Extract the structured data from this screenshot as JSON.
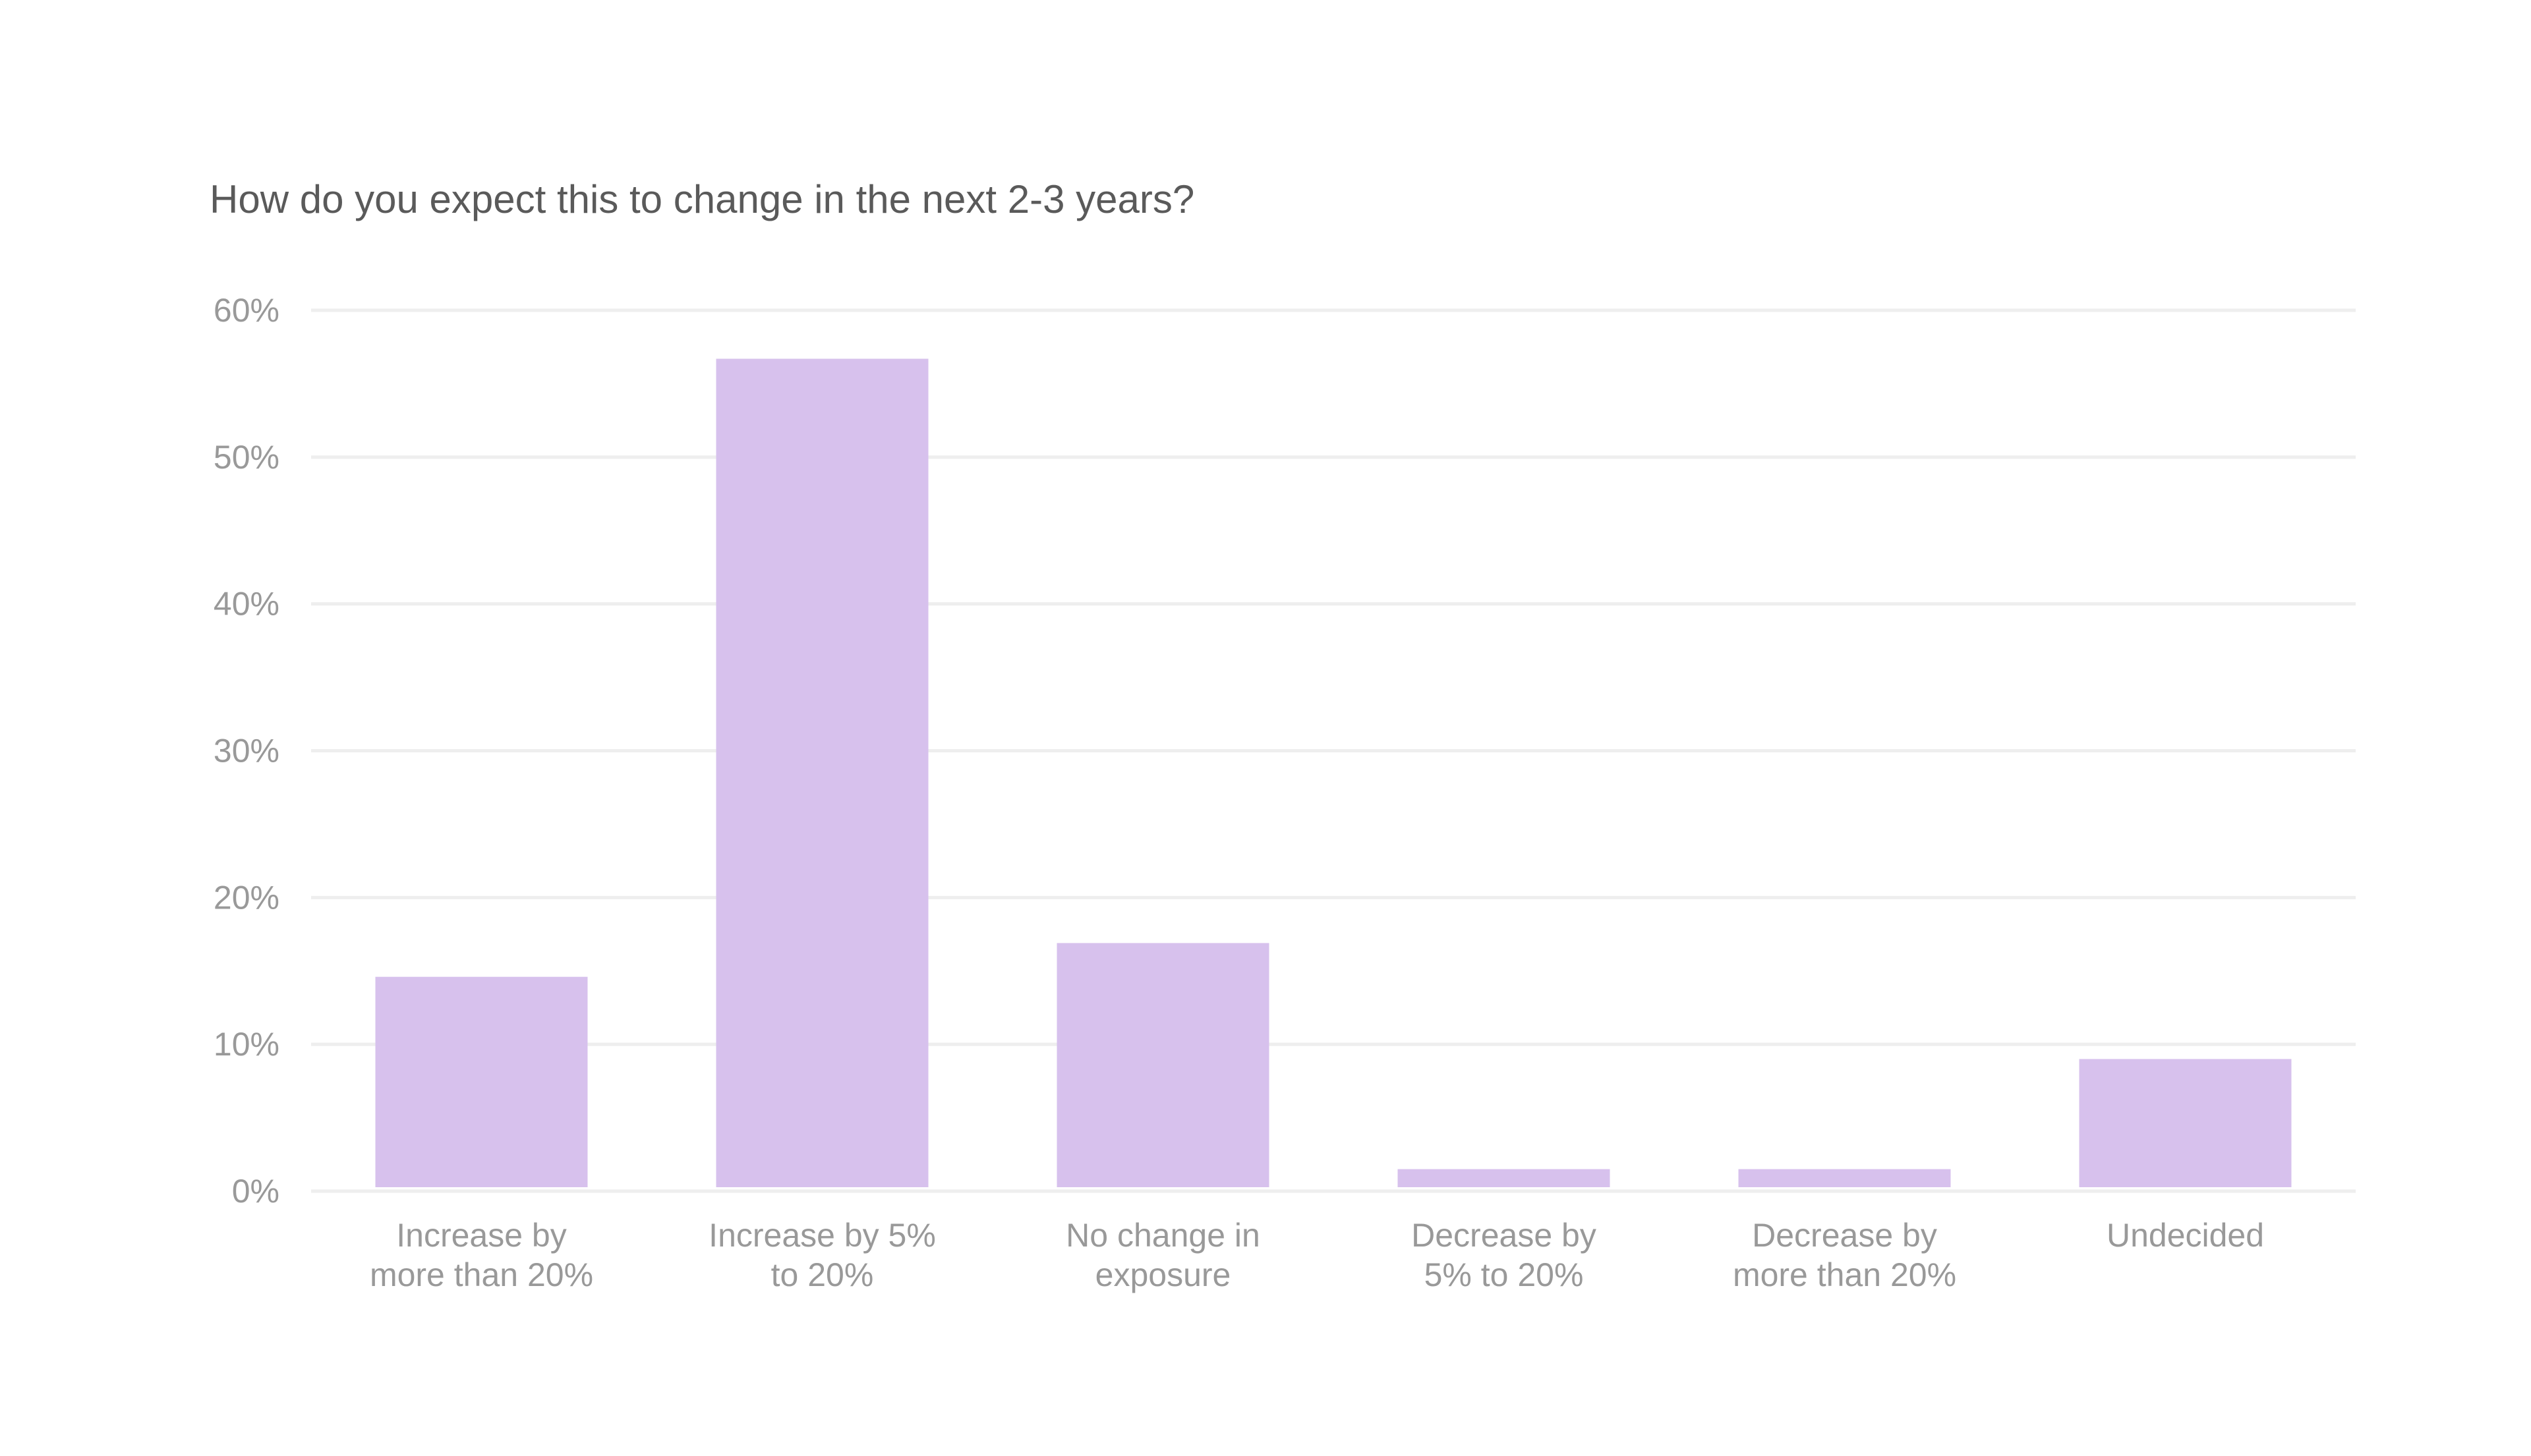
{
  "colors": {
    "bar": "#d7c1ed",
    "grid": "#eeeeee",
    "tick_text": "#999999",
    "title_text": "#5a5a5a",
    "background": "#ffffff"
  },
  "chart_data": {
    "type": "bar",
    "title": "How do you expect this to change in the next 2-3 years?",
    "xlabel": "",
    "ylabel": "",
    "ylim": [
      0,
      60
    ],
    "yticks": [
      0,
      10,
      20,
      30,
      40,
      50,
      60
    ],
    "ytick_labels": [
      "0%",
      "10%",
      "20%",
      "30%",
      "40%",
      "50%",
      "60%"
    ],
    "grid": true,
    "legend": "none",
    "categories": [
      [
        "Increase by",
        "more than 20%"
      ],
      [
        "Increase by 5%",
        "to 20%"
      ],
      [
        "No change in",
        "exposure"
      ],
      [
        "Decrease by",
        "5% to 20%"
      ],
      [
        "Decrease by",
        "more than 20%"
      ],
      [
        "Undecided"
      ]
    ],
    "values": [
      14.6,
      56.7,
      16.9,
      1.5,
      1.5,
      9.0
    ]
  }
}
